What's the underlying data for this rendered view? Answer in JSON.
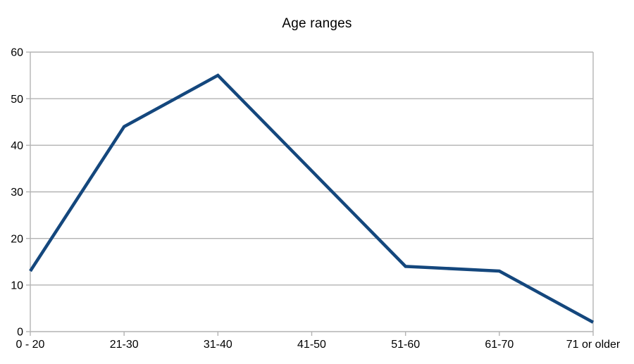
{
  "chart_data": {
    "type": "line",
    "title": "Age ranges",
    "categories": [
      "0 - 20",
      "21-30",
      "31-40",
      "41-50",
      "51-60",
      "61-70",
      "71 or older"
    ],
    "values": [
      13,
      44,
      55,
      34.5,
      14,
      13,
      2
    ],
    "xlabel": "",
    "ylabel": "",
    "ylim": [
      0,
      60
    ],
    "y_ticks": [
      0,
      10,
      20,
      30,
      40,
      50,
      60
    ],
    "grid": "horizontal",
    "legend": "none",
    "markers": "none",
    "line_color": "#14477d",
    "grid_color": "#b3b3b3",
    "axis_color": "#b3b3b3",
    "text_color": "#000000",
    "background_color": "#ffffff"
  }
}
